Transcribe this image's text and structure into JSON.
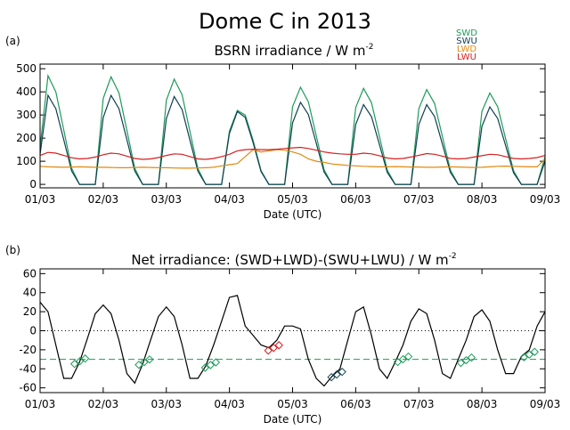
{
  "title": "Dome C in 2013",
  "chart_data": [
    {
      "type": "line",
      "panel_label": "(a)",
      "title": "BSRN irradiance / W m",
      "title_superscript": "-2",
      "xlabel": "Date (UTC)",
      "x": [
        0,
        0.125,
        0.25,
        0.375,
        0.5,
        0.625,
        0.75,
        0.875,
        1,
        1.125,
        1.25,
        1.375,
        1.5,
        1.625,
        1.75,
        1.875,
        2,
        2.125,
        2.25,
        2.375,
        2.5,
        2.625,
        2.75,
        2.875,
        3,
        3.125,
        3.25,
        3.375,
        3.5,
        3.625,
        3.75,
        3.875,
        4,
        4.125,
        4.25,
        4.375,
        4.5,
        4.625,
        4.75,
        4.875,
        5,
        5.125,
        5.25,
        5.375,
        5.5,
        5.625,
        5.75,
        5.875,
        6,
        6.125,
        6.25,
        6.375,
        6.5,
        6.625,
        6.75,
        6.875,
        7,
        7.125,
        7.25,
        7.375,
        7.5,
        7.625,
        7.75,
        7.875,
        8
      ],
      "xlim": [
        0,
        8
      ],
      "xticks": [
        {
          "value": 0,
          "label": "01/03"
        },
        {
          "value": 1,
          "label": "02/03"
        },
        {
          "value": 2,
          "label": "03/03"
        },
        {
          "value": 3,
          "label": "04/03"
        },
        {
          "value": 4,
          "label": "05/03"
        },
        {
          "value": 5,
          "label": "06/03"
        },
        {
          "value": 6,
          "label": "07/03"
        },
        {
          "value": 7,
          "label": "08/03"
        },
        {
          "value": 8,
          "label": "09/03"
        }
      ],
      "ylim": [
        -15,
        520
      ],
      "yticks": [
        0,
        100,
        200,
        300,
        400,
        500
      ],
      "series": [
        {
          "name": "SWD",
          "color": "#1e9a5a",
          "values": [
            160,
            470,
            400,
            235,
            70,
            0,
            0,
            0,
            372,
            465,
            395,
            233,
            70,
            0,
            0,
            0,
            364,
            455,
            387,
            228,
            68,
            0,
            0,
            0,
            230,
            320,
            300,
            190,
            60,
            0,
            0,
            0,
            336,
            420,
            357,
            210,
            63,
            0,
            0,
            0,
            332,
            415,
            353,
            208,
            62,
            0,
            0,
            0,
            328,
            410,
            349,
            205,
            62,
            0,
            0,
            0,
            316,
            395,
            336,
            198,
            59,
            0,
            0,
            0,
            120
          ]
        },
        {
          "name": "SWU",
          "color": "#0e3f52",
          "values": [
            130,
            385,
            327,
            193,
            58,
            0,
            0,
            0,
            289,
            385,
            327,
            193,
            58,
            0,
            0,
            0,
            285,
            380,
            323,
            190,
            57,
            0,
            0,
            0,
            220,
            315,
            290,
            180,
            55,
            0,
            0,
            0,
            266,
            355,
            302,
            178,
            53,
            0,
            0,
            0,
            259,
            345,
            293,
            173,
            52,
            0,
            0,
            0,
            259,
            345,
            293,
            173,
            52,
            0,
            0,
            0,
            251,
            335,
            285,
            168,
            50,
            0,
            0,
            0,
            100
          ]
        },
        {
          "name": "LWD",
          "color": "#e08a10",
          "values": [
            78,
            76,
            75,
            74,
            75,
            76,
            75,
            74,
            74,
            73,
            72,
            72,
            73,
            74,
            73,
            72,
            72,
            71,
            70,
            70,
            71,
            72,
            74,
            80,
            85,
            90,
            120,
            150,
            140,
            145,
            150,
            148,
            140,
            130,
            110,
            100,
            95,
            88,
            85,
            82,
            80,
            78,
            77,
            76,
            76,
            77,
            76,
            75,
            75,
            74,
            74,
            75,
            76,
            75,
            74,
            73,
            74,
            76,
            78,
            79,
            78,
            77,
            76,
            76,
            110
          ]
        },
        {
          "name": "LWU",
          "color": "#d42020",
          "values": [
            125,
            138,
            135,
            125,
            115,
            110,
            112,
            118,
            128,
            135,
            132,
            122,
            112,
            108,
            110,
            116,
            125,
            132,
            130,
            120,
            110,
            108,
            112,
            120,
            130,
            145,
            150,
            152,
            150,
            150,
            152,
            155,
            158,
            160,
            155,
            148,
            140,
            135,
            132,
            130,
            130,
            135,
            132,
            124,
            114,
            110,
            112,
            118,
            126,
            133,
            130,
            122,
            112,
            110,
            112,
            118,
            124,
            130,
            128,
            120,
            112,
            110,
            112,
            116,
            125
          ]
        }
      ]
    },
    {
      "type": "line",
      "panel_label": "(b)",
      "title": "Net irradiance: (SWD+LWD)-(SWU+LWU) / W m",
      "title_superscript": "-2",
      "xlabel": "Date (UTC)",
      "x": [
        0,
        0.125,
        0.25,
        0.375,
        0.5,
        0.625,
        0.75,
        0.875,
        1,
        1.125,
        1.25,
        1.375,
        1.5,
        1.625,
        1.75,
        1.875,
        2,
        2.125,
        2.25,
        2.375,
        2.5,
        2.625,
        2.75,
        2.875,
        3,
        3.125,
        3.25,
        3.375,
        3.5,
        3.625,
        3.75,
        3.875,
        4,
        4.125,
        4.25,
        4.375,
        4.5,
        4.625,
        4.75,
        4.875,
        5,
        5.125,
        5.25,
        5.375,
        5.5,
        5.625,
        5.75,
        5.875,
        6,
        6.125,
        6.25,
        6.375,
        6.5,
        6.625,
        6.75,
        6.875,
        7,
        7.125,
        7.25,
        7.375,
        7.5,
        7.625,
        7.75,
        7.875,
        8
      ],
      "xlim": [
        0,
        8
      ],
      "xticks": [
        {
          "value": 0,
          "label": "01/03"
        },
        {
          "value": 1,
          "label": "02/03"
        },
        {
          "value": 2,
          "label": "03/03"
        },
        {
          "value": 3,
          "label": "04/03"
        },
        {
          "value": 4,
          "label": "05/03"
        },
        {
          "value": 5,
          "label": "06/03"
        },
        {
          "value": 6,
          "label": "07/03"
        },
        {
          "value": 7,
          "label": "08/03"
        },
        {
          "value": 8,
          "label": "09/03"
        }
      ],
      "ylim": [
        -65,
        65
      ],
      "yticks": [
        -60,
        -40,
        -20,
        0,
        20,
        40,
        60
      ],
      "series": [
        {
          "color": "#000000",
          "values": [
            30,
            20,
            -15,
            -50,
            -50,
            -33,
            -8,
            18,
            27,
            18,
            -10,
            -45,
            -55,
            -35,
            -10,
            15,
            25,
            15,
            -15,
            -50,
            -50,
            -37,
            -15,
            10,
            35,
            37,
            5,
            -5,
            -15,
            -18,
            -10,
            5,
            5,
            2,
            -30,
            -50,
            -58,
            -48,
            -40,
            -10,
            20,
            25,
            -5,
            -40,
            -50,
            -33,
            -15,
            10,
            23,
            18,
            -10,
            -45,
            -50,
            -30,
            -10,
            15,
            22,
            10,
            -20,
            -45,
            -45,
            -27,
            -20,
            5,
            20
          ]
        }
      ],
      "hlines": [
        {
          "value": 0,
          "style": "dotted",
          "color": "#000000"
        },
        {
          "value": -30,
          "style": "dashed",
          "color": "#1e9a5a"
        }
      ],
      "points": {
        "x": [
          0.63,
          1.65,
          2.7,
          3.7,
          4.7,
          5.75,
          6.75,
          7.75
        ],
        "values": [
          -32,
          -33,
          -36,
          -18,
          -46,
          -30,
          -31,
          -25
        ],
        "colors": [
          "#1e9a5a",
          "#1e9a5a",
          "#1e9a5a",
          "#d42020",
          "#0e3f52",
          "#1e9a5a",
          "#1e9a5a",
          "#1e9a5a"
        ]
      }
    }
  ]
}
